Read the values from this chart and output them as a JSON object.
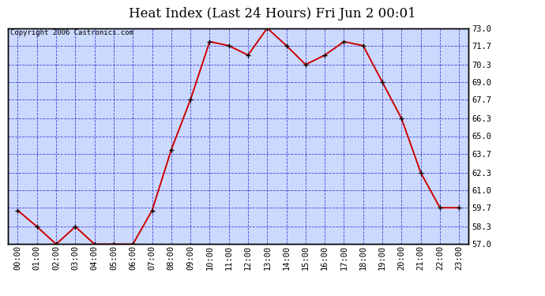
{
  "title": "Heat Index (Last 24 Hours) Fri Jun 2 00:01",
  "copyright": "Copyright 2006 Castronics.com",
  "hours": [
    "00:00",
    "01:00",
    "02:00",
    "03:00",
    "04:00",
    "05:00",
    "06:00",
    "07:00",
    "08:00",
    "09:00",
    "10:00",
    "11:00",
    "12:00",
    "13:00",
    "14:00",
    "15:00",
    "16:00",
    "17:00",
    "18:00",
    "19:00",
    "20:00",
    "21:00",
    "22:00",
    "23:00"
  ],
  "values": [
    59.5,
    58.3,
    57.0,
    58.3,
    57.0,
    57.0,
    57.0,
    59.5,
    64.0,
    67.7,
    72.0,
    71.7,
    71.0,
    73.0,
    71.7,
    70.3,
    71.0,
    72.0,
    71.7,
    69.0,
    66.3,
    62.3,
    59.7,
    59.7
  ],
  "ylim": [
    57.0,
    73.0
  ],
  "yticks": [
    57.0,
    58.3,
    59.7,
    61.0,
    62.3,
    63.7,
    65.0,
    66.3,
    67.7,
    69.0,
    70.3,
    71.7,
    73.0
  ],
  "ytick_labels": [
    "57.0",
    "58.3",
    "59.7",
    "61.0",
    "62.3",
    "63.7",
    "65.0",
    "66.3",
    "67.7",
    "69.0",
    "70.3",
    "71.7",
    "73.0"
  ],
  "line_color": "#cc0000",
  "marker_color": "#000000",
  "plot_bg": "#ccd9ff",
  "outer_bg": "#ffffff",
  "grid_color": "#3333cc",
  "border_color": "#000000",
  "title_fontsize": 12,
  "copyright_fontsize": 6.5,
  "tick_fontsize": 7.5
}
